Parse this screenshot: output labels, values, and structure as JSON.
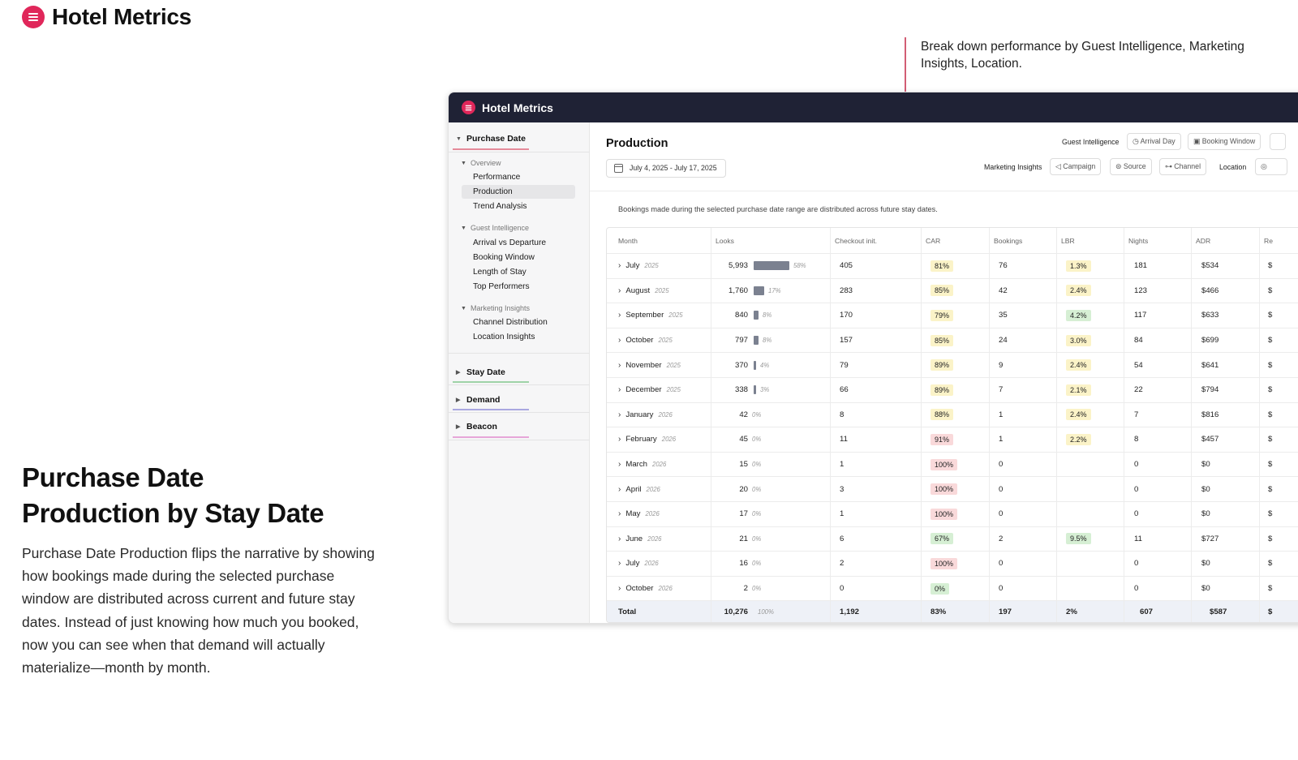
{
  "brand": {
    "title": "Hotel Metrics",
    "accent": "#e0275a"
  },
  "callout": {
    "text": "Break down performance by Guest Intelligence, Marketing Insights, Location."
  },
  "headline": {
    "line1": "Purchase Date",
    "line2": "Production by Stay Date"
  },
  "description": "Purchase Date Production flips the narrative by showing how bookings made during the selected purchase window are distributed across current and future stay dates. Instead of just knowing how much you booked, now you can see when that demand will actually materialize—month by month.",
  "app": {
    "title": "Hotel Metrics",
    "header_bg": "#1f2235",
    "sidebar": {
      "sections": [
        {
          "label": "Purchase Date",
          "expanded": true,
          "color": "#e58a9a"
        },
        {
          "label": "Stay Date",
          "expanded": false,
          "color": "#9fd3a8"
        },
        {
          "label": "Demand",
          "expanded": false,
          "color": "#a9a8e0"
        },
        {
          "label": "Beacon",
          "expanded": false,
          "color": "#e6a6d8"
        }
      ],
      "groups": [
        {
          "label": "Overview",
          "items": [
            "Performance",
            "Production",
            "Trend Analysis"
          ]
        },
        {
          "label": "Guest Intelligence",
          "items": [
            "Arrival vs Departure",
            "Booking Window",
            "Length of Stay",
            "Top Performers"
          ]
        },
        {
          "label": "Marketing Insights",
          "items": [
            "Channel Distribution",
            "Location Insights"
          ]
        }
      ],
      "active_item": "Production"
    },
    "main": {
      "title": "Production",
      "date_range": "July 4, 2025 - July 17, 2025",
      "filters": {
        "guest_intelligence": {
          "label": "Guest Intelligence",
          "chips": [
            "Arrival Day",
            "Booking Window"
          ]
        },
        "marketing_insights": {
          "label": "Marketing Insights",
          "chips": [
            "Campaign",
            "Source",
            "Channel"
          ]
        },
        "location": {
          "label": "Location"
        }
      },
      "note": "Bookings made during the selected purchase date range are distributed across future stay dates.",
      "columns": [
        "Month",
        "Looks",
        "Checkout init.",
        "CAR",
        "Bookings",
        "LBR",
        "Nights",
        "ADR",
        "Re"
      ],
      "rows": [
        {
          "month": "July",
          "year": "2025",
          "looks": "5,993",
          "share": 58,
          "share_label": "58%",
          "checkout": "405",
          "car": "81%",
          "car_color": "yellow",
          "bookings": "76",
          "lbr": "1.3%",
          "lbr_color": "yellow",
          "nights": "181",
          "adr": "$534",
          "re": "$"
        },
        {
          "month": "August",
          "year": "2025",
          "looks": "1,760",
          "share": 17,
          "share_label": "17%",
          "checkout": "283",
          "car": "85%",
          "car_color": "yellow",
          "bookings": "42",
          "lbr": "2.4%",
          "lbr_color": "yellow",
          "nights": "123",
          "adr": "$466",
          "re": "$"
        },
        {
          "month": "September",
          "year": "2025",
          "looks": "840",
          "share": 8,
          "share_label": "8%",
          "checkout": "170",
          "car": "79%",
          "car_color": "yellow",
          "bookings": "35",
          "lbr": "4.2%",
          "lbr_color": "green",
          "nights": "117",
          "adr": "$633",
          "re": "$"
        },
        {
          "month": "October",
          "year": "2025",
          "looks": "797",
          "share": 8,
          "share_label": "8%",
          "checkout": "157",
          "car": "85%",
          "car_color": "yellow",
          "bookings": "24",
          "lbr": "3.0%",
          "lbr_color": "yellow",
          "nights": "84",
          "adr": "$699",
          "re": "$"
        },
        {
          "month": "November",
          "year": "2025",
          "looks": "370",
          "share": 4,
          "share_label": "4%",
          "checkout": "79",
          "car": "89%",
          "car_color": "yellow",
          "bookings": "9",
          "lbr": "2.4%",
          "lbr_color": "yellow",
          "nights": "54",
          "adr": "$641",
          "re": "$"
        },
        {
          "month": "December",
          "year": "2025",
          "looks": "338",
          "share": 3,
          "share_label": "3%",
          "checkout": "66",
          "car": "89%",
          "car_color": "yellow",
          "bookings": "7",
          "lbr": "2.1%",
          "lbr_color": "yellow",
          "nights": "22",
          "adr": "$794",
          "re": "$"
        },
        {
          "month": "January",
          "year": "2026",
          "looks": "42",
          "share": 0,
          "share_label": "0%",
          "checkout": "8",
          "car": "88%",
          "car_color": "yellow",
          "bookings": "1",
          "lbr": "2.4%",
          "lbr_color": "yellow",
          "nights": "7",
          "adr": "$816",
          "re": "$"
        },
        {
          "month": "February",
          "year": "2026",
          "looks": "45",
          "share": 0,
          "share_label": "0%",
          "checkout": "11",
          "car": "91%",
          "car_color": "red",
          "bookings": "1",
          "lbr": "2.2%",
          "lbr_color": "yellow",
          "nights": "8",
          "adr": "$457",
          "re": "$"
        },
        {
          "month": "March",
          "year": "2026",
          "looks": "15",
          "share": 0,
          "share_label": "0%",
          "checkout": "1",
          "car": "100%",
          "car_color": "red",
          "bookings": "0",
          "lbr": "",
          "lbr_color": "",
          "nights": "0",
          "adr": "$0",
          "re": "$"
        },
        {
          "month": "April",
          "year": "2026",
          "looks": "20",
          "share": 0,
          "share_label": "0%",
          "checkout": "3",
          "car": "100%",
          "car_color": "red",
          "bookings": "0",
          "lbr": "",
          "lbr_color": "",
          "nights": "0",
          "adr": "$0",
          "re": "$"
        },
        {
          "month": "May",
          "year": "2026",
          "looks": "17",
          "share": 0,
          "share_label": "0%",
          "checkout": "1",
          "car": "100%",
          "car_color": "red",
          "bookings": "0",
          "lbr": "",
          "lbr_color": "",
          "nights": "0",
          "adr": "$0",
          "re": "$"
        },
        {
          "month": "June",
          "year": "2026",
          "looks": "21",
          "share": 0,
          "share_label": "0%",
          "checkout": "6",
          "car": "67%",
          "car_color": "green",
          "bookings": "2",
          "lbr": "9.5%",
          "lbr_color": "green",
          "nights": "11",
          "adr": "$727",
          "re": "$"
        },
        {
          "month": "July",
          "year": "2026",
          "looks": "16",
          "share": 0,
          "share_label": "0%",
          "checkout": "2",
          "car": "100%",
          "car_color": "red",
          "bookings": "0",
          "lbr": "",
          "lbr_color": "",
          "nights": "0",
          "adr": "$0",
          "re": "$"
        },
        {
          "month": "October",
          "year": "2026",
          "looks": "2",
          "share": 0,
          "share_label": "0%",
          "checkout": "0",
          "car": "0%",
          "car_color": "green",
          "bookings": "0",
          "lbr": "",
          "lbr_color": "",
          "nights": "0",
          "adr": "$0",
          "re": "$"
        }
      ],
      "total": {
        "label": "Total",
        "looks": "10,276",
        "share_label": "100%",
        "checkout": "1,192",
        "car": "83%",
        "bookings": "197",
        "lbr": "2%",
        "nights": "607",
        "adr": "$587",
        "re": "$"
      },
      "badge_colors": {
        "yellow": "#fbf3c8",
        "green": "#d6efd4",
        "red": "#f9d9da"
      }
    }
  }
}
